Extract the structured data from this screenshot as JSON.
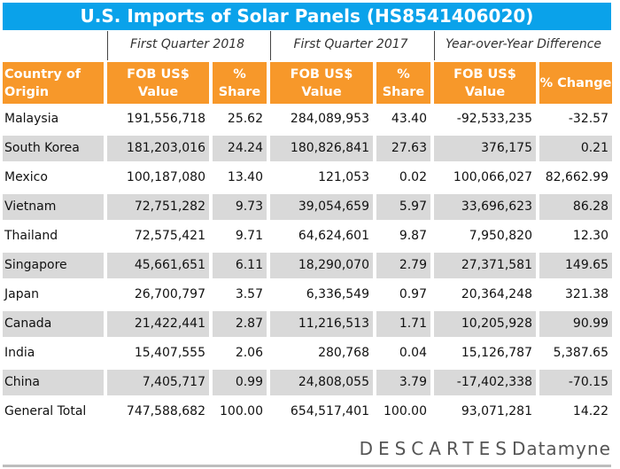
{
  "title": "U.S. Imports of Solar Panels (HS8541406020)",
  "groups": [
    "First Quarter 2018",
    "First Quarter 2017",
    "Year-over-Year Difference"
  ],
  "colors": {
    "title_bg": "#0aa2ea",
    "header_bg": "#f7982a",
    "alt_row": "#d9d9d9"
  },
  "chart_data": {
    "type": "table",
    "title": "U.S. Imports of Solar Panels (HS8541406020)",
    "columns": [
      "Country of Origin",
      "FOB US$ Value",
      "% Share",
      "FOB US$ Value",
      "% Share",
      "FOB US$ Value",
      "% Change"
    ],
    "rows": [
      [
        "Malaysia",
        "191,556,718",
        "25.62",
        "284,089,953",
        "43.40",
        "-92,533,235",
        "-32.57"
      ],
      [
        "South Korea",
        "181,203,016",
        "24.24",
        "180,826,841",
        "27.63",
        "376,175",
        "0.21"
      ],
      [
        "Mexico",
        "100,187,080",
        "13.40",
        "121,053",
        "0.02",
        "100,066,027",
        "82,662.99"
      ],
      [
        "Vietnam",
        "72,751,282",
        "9.73",
        "39,054,659",
        "5.97",
        "33,696,623",
        "86.28"
      ],
      [
        "Thailand",
        "72,575,421",
        "9.71",
        "64,624,601",
        "9.87",
        "7,950,820",
        "12.30"
      ],
      [
        "Singapore",
        "45,661,651",
        "6.11",
        "18,290,070",
        "2.79",
        "27,371,581",
        "149.65"
      ],
      [
        "Japan",
        "26,700,797",
        "3.57",
        "6,336,549",
        "0.97",
        "20,364,248",
        "321.38"
      ],
      [
        "Canada",
        "21,422,441",
        "2.87",
        "11,216,513",
        "1.71",
        "10,205,928",
        "90.99"
      ],
      [
        "India",
        "15,407,555",
        "2.06",
        "280,768",
        "0.04",
        "15,126,787",
        "5,387.65"
      ],
      [
        "China",
        "7,405,717",
        "0.99",
        "24,808,055",
        "3.79",
        "-17,402,338",
        "-70.15"
      ],
      [
        "General Total",
        "747,588,682",
        "100.00",
        "654,517,401",
        "100.00",
        "93,071,281",
        "14.22"
      ]
    ]
  },
  "logo": {
    "brand": "DESCARTES",
    "product": "Datamyne"
  }
}
